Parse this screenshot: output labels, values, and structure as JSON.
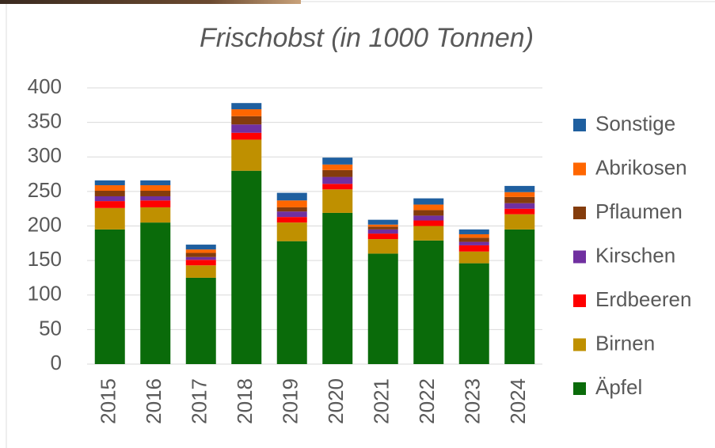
{
  "chart_data": {
    "type": "stacked_bar",
    "title": "Frischobst (in 1000 Tonnen)",
    "categories": [
      "2015",
      "2016",
      "2017",
      "2018",
      "2019",
      "2020",
      "2021",
      "2022",
      "2023",
      "2024"
    ],
    "series": [
      {
        "name": "Äpfel",
        "color": "#0a6b0a",
        "values": [
          195,
          205,
          125,
          280,
          178,
          219,
          160,
          179,
          146,
          195
        ]
      },
      {
        "name": "Birnen",
        "color": "#bf9000",
        "values": [
          31,
          22,
          18,
          45,
          27,
          34,
          21,
          21,
          17,
          22
        ]
      },
      {
        "name": "Erdbeeren",
        "color": "#ff0000",
        "values": [
          10,
          10,
          8,
          10,
          8,
          8,
          8,
          8,
          9,
          8
        ]
      },
      {
        "name": "Kirschen",
        "color": "#7030a0",
        "values": [
          7,
          6,
          4,
          12,
          8,
          10,
          6,
          7,
          5,
          8
        ]
      },
      {
        "name": "Pflaumen",
        "color": "#843c0c",
        "values": [
          8,
          8,
          6,
          12,
          6,
          10,
          4,
          8,
          6,
          9
        ]
      },
      {
        "name": "Abrikosen",
        "color": "#ff6600",
        "values": [
          8,
          8,
          5,
          10,
          10,
          8,
          3,
          8,
          5,
          7
        ]
      },
      {
        "name": "Sonstige",
        "color": "#1f5f9f",
        "values": [
          7,
          7,
          7,
          9,
          11,
          10,
          7,
          9,
          7,
          9
        ]
      }
    ],
    "ylim": [
      0,
      400
    ],
    "yticks": [
      0,
      50,
      100,
      150,
      200,
      250,
      300,
      350,
      400
    ],
    "grid": true,
    "legend": "right"
  }
}
